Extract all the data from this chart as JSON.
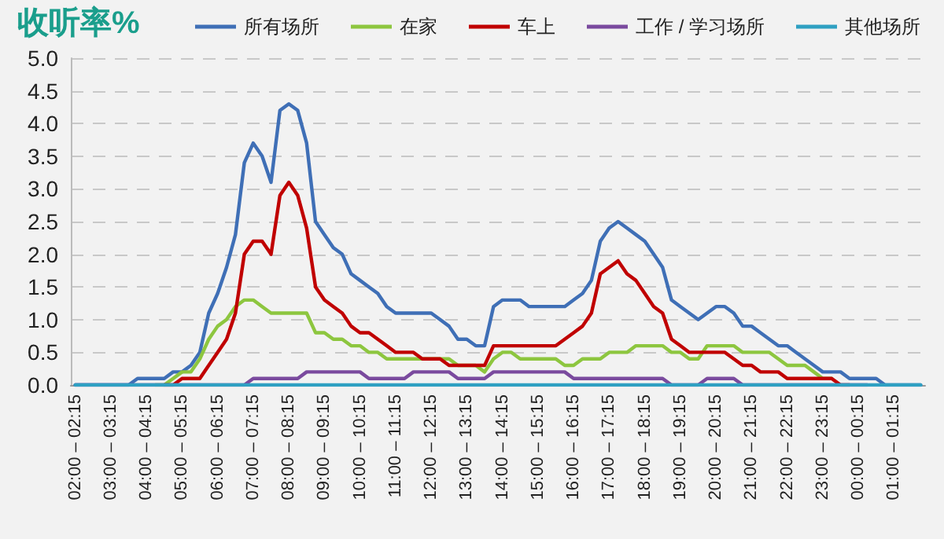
{
  "chart_data": {
    "type": "line",
    "title": "收听率%",
    "categories": [
      "02:00 – 02:15",
      null,
      null,
      null,
      "03:00 – 03:15",
      null,
      null,
      null,
      "04:00 – 04:15",
      null,
      null,
      null,
      "05:00 – 05:15",
      null,
      null,
      null,
      "06:00 – 06:15",
      null,
      null,
      null,
      "07:00 – 07:15",
      null,
      null,
      null,
      "08:00 – 08:15",
      null,
      null,
      null,
      "09:00 – 09:15",
      null,
      null,
      null,
      "10:00 – 10:15",
      null,
      null,
      null,
      "11:00 – 11:15",
      null,
      null,
      null,
      "12:00 – 12:15",
      null,
      null,
      null,
      "13:00 – 13:15",
      null,
      null,
      null,
      "14:00 – 14:15",
      null,
      null,
      null,
      "15:00 – 15:15",
      null,
      null,
      null,
      "16:00 – 16:15",
      null,
      null,
      null,
      "17:00 – 17:15",
      null,
      null,
      null,
      "18:00 – 18:15",
      null,
      null,
      null,
      "19:00 – 19:15",
      null,
      null,
      null,
      "20:00 – 20:15",
      null,
      null,
      null,
      "21:00 – 21:15",
      null,
      null,
      null,
      "22:00 – 22:15",
      null,
      null,
      null,
      "23:00 – 23:15",
      null,
      null,
      null,
      "00:00 – 00:15",
      null,
      null,
      null,
      "01:00 – 01:15",
      null,
      null,
      null
    ],
    "series": [
      {
        "name": "所有场所",
        "color": "#3f6fb6",
        "values": [
          0,
          0,
          0,
          0,
          0,
          0,
          0,
          0.1,
          0.1,
          0.1,
          0.1,
          0.2,
          0.2,
          0.3,
          0.5,
          1.1,
          1.4,
          1.8,
          2.3,
          3.4,
          3.7,
          3.5,
          3.1,
          4.2,
          4.3,
          4.2,
          3.7,
          2.5,
          2.3,
          2.1,
          2.0,
          1.7,
          1.6,
          1.5,
          1.4,
          1.2,
          1.1,
          1.1,
          1.1,
          1.1,
          1.1,
          1.0,
          0.9,
          0.7,
          0.7,
          0.6,
          0.6,
          1.2,
          1.3,
          1.3,
          1.3,
          1.2,
          1.2,
          1.2,
          1.2,
          1.2,
          1.3,
          1.4,
          1.6,
          2.2,
          2.4,
          2.5,
          2.4,
          2.3,
          2.2,
          2.0,
          1.8,
          1.3,
          1.2,
          1.1,
          1.0,
          1.1,
          1.2,
          1.2,
          1.1,
          0.9,
          0.9,
          0.8,
          0.7,
          0.6,
          0.6,
          0.5,
          0.4,
          0.3,
          0.2,
          0.2,
          0.2,
          0.1,
          0.1,
          0.1,
          0.1,
          0,
          0,
          0,
          0,
          0
        ]
      },
      {
        "name": "在家",
        "color": "#8dc63f",
        "values": [
          null,
          null,
          null,
          null,
          null,
          null,
          null,
          null,
          null,
          0,
          0,
          0.1,
          0.2,
          0.2,
          0.4,
          0.7,
          0.9,
          1.0,
          1.2,
          1.3,
          1.3,
          1.2,
          1.1,
          1.1,
          1.1,
          1.1,
          1.1,
          0.8,
          0.8,
          0.7,
          0.7,
          0.6,
          0.6,
          0.5,
          0.5,
          0.4,
          0.4,
          0.4,
          0.4,
          0.4,
          0.4,
          0.4,
          0.4,
          0.3,
          0.3,
          0.3,
          0.2,
          0.4,
          0.5,
          0.5,
          0.4,
          0.4,
          0.4,
          0.4,
          0.4,
          0.3,
          0.3,
          0.4,
          0.4,
          0.4,
          0.5,
          0.5,
          0.5,
          0.6,
          0.6,
          0.6,
          0.6,
          0.5,
          0.5,
          0.4,
          0.4,
          0.6,
          0.6,
          0.6,
          0.6,
          0.5,
          0.5,
          0.5,
          0.5,
          0.4,
          0.3,
          0.3,
          0.3,
          0.2,
          0.1,
          0.1,
          null,
          null,
          null,
          null,
          null,
          null,
          null,
          null,
          null,
          null
        ]
      },
      {
        "name": "车上",
        "color": "#c00000",
        "values": [
          null,
          null,
          null,
          null,
          null,
          null,
          null,
          null,
          null,
          null,
          0,
          0,
          0.1,
          0.1,
          0.1,
          0.3,
          0.5,
          0.7,
          1.1,
          2.0,
          2.2,
          2.2,
          2.0,
          2.9,
          3.1,
          2.9,
          2.4,
          1.5,
          1.3,
          1.2,
          1.1,
          0.9,
          0.8,
          0.8,
          0.7,
          0.6,
          0.5,
          0.5,
          0.5,
          0.4,
          0.4,
          0.4,
          0.3,
          0.3,
          0.3,
          0.3,
          0.3,
          0.6,
          0.6,
          0.6,
          0.6,
          0.6,
          0.6,
          0.6,
          0.6,
          0.7,
          0.8,
          0.9,
          1.1,
          1.7,
          1.8,
          1.9,
          1.7,
          1.6,
          1.4,
          1.2,
          1.1,
          0.7,
          0.6,
          0.5,
          0.5,
          0.5,
          0.5,
          0.5,
          0.4,
          0.3,
          0.3,
          0.2,
          0.2,
          0.2,
          0.1,
          0.1,
          0.1,
          0.1,
          0.1,
          0.1,
          0,
          0,
          null,
          null,
          null,
          null,
          null,
          null,
          null,
          null
        ]
      },
      {
        "name": "工作 / 学习场所",
        "color": "#7a4a9e",
        "values": [
          0,
          0,
          0,
          0,
          0,
          0,
          0,
          0,
          0,
          0,
          0,
          0,
          0,
          0,
          0,
          0,
          0,
          0,
          0,
          0,
          0.1,
          0.1,
          0.1,
          0.1,
          0.1,
          0.1,
          0.2,
          0.2,
          0.2,
          0.2,
          0.2,
          0.2,
          0.2,
          0.1,
          0.1,
          0.1,
          0.1,
          0.1,
          0.2,
          0.2,
          0.2,
          0.2,
          0.2,
          0.1,
          0.1,
          0.1,
          0.1,
          0.2,
          0.2,
          0.2,
          0.2,
          0.2,
          0.2,
          0.2,
          0.2,
          0.2,
          0.1,
          0.1,
          0.1,
          0.1,
          0.1,
          0.1,
          0.1,
          0.1,
          0.1,
          0.1,
          0.1,
          0,
          0,
          0,
          0,
          0.1,
          0.1,
          0.1,
          0.1,
          0,
          0,
          0,
          0,
          0,
          0,
          0,
          0,
          0,
          0,
          0,
          0,
          0,
          0,
          0,
          null,
          null,
          null,
          null,
          null,
          null
        ]
      },
      {
        "name": "其他场所",
        "color": "#2fa0c2",
        "values": [
          0,
          0,
          0,
          0,
          0,
          0,
          0,
          0,
          0,
          0,
          0,
          0,
          0,
          0,
          0,
          0,
          0,
          0,
          0,
          0,
          0,
          0,
          0,
          0,
          0,
          0,
          0,
          0,
          0,
          0,
          0,
          0,
          0,
          0,
          0,
          0,
          0,
          0,
          0,
          0,
          0,
          0,
          0,
          0,
          0,
          0,
          0,
          0,
          0,
          0,
          0,
          0,
          0,
          0,
          0,
          0,
          0,
          0,
          0,
          0,
          0,
          0,
          0,
          0,
          0,
          0,
          0,
          0,
          0,
          0,
          0,
          0,
          0,
          0,
          0,
          0,
          0,
          0,
          0,
          0,
          0,
          0,
          0,
          0,
          0,
          0,
          0,
          0,
          0,
          0,
          0,
          0,
          0,
          0,
          0,
          0
        ]
      }
    ],
    "ylim": [
      0,
      5
    ],
    "yticks": [
      {
        "value": 0,
        "label": "0.0"
      },
      {
        "value": 0.5,
        "label": "0.5"
      },
      {
        "value": 1,
        "label": "1.0"
      },
      {
        "value": 1.5,
        "label": "1.5"
      },
      {
        "value": 2,
        "label": "2.0"
      },
      {
        "value": 2.5,
        "label": "2.5"
      },
      {
        "value": 3,
        "label": "3.0"
      },
      {
        "value": 3.5,
        "label": "3.5"
      },
      {
        "value": 4,
        "label": "4.0"
      },
      {
        "value": 4.5,
        "label": "4.5"
      },
      {
        "value": 5,
        "label": "5.0"
      }
    ],
    "grid": "y",
    "legend": "top right",
    "marker": "none",
    "line_style": "solid"
  }
}
